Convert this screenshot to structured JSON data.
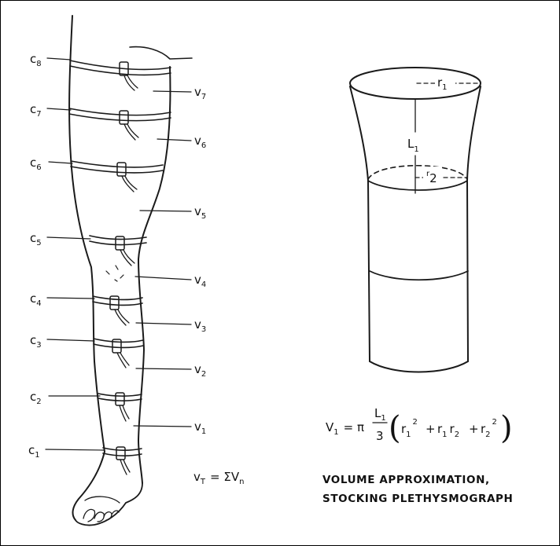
{
  "leg": {
    "circumferences": [
      {
        "letter": "c",
        "sub": "8"
      },
      {
        "letter": "c",
        "sub": "7"
      },
      {
        "letter": "c",
        "sub": "6"
      },
      {
        "letter": "c",
        "sub": "5"
      },
      {
        "letter": "c",
        "sub": "4"
      },
      {
        "letter": "c",
        "sub": "3"
      },
      {
        "letter": "c",
        "sub": "2"
      },
      {
        "letter": "c",
        "sub": "1"
      }
    ],
    "volumes": [
      {
        "letter": "v",
        "sub": "7"
      },
      {
        "letter": "v",
        "sub": "6"
      },
      {
        "letter": "v",
        "sub": "5"
      },
      {
        "letter": "v",
        "sub": "4"
      },
      {
        "letter": "v",
        "sub": "3"
      },
      {
        "letter": "v",
        "sub": "2"
      },
      {
        "letter": "v",
        "sub": "1"
      }
    ],
    "total": {
      "lhs": "v",
      "lhs_sub": "T",
      "rhs": "= ΣV",
      "rhs_sub": "n"
    }
  },
  "frustum": {
    "r1": {
      "letter": "r",
      "sub": "1"
    },
    "r2": {
      "letter": "r",
      "sub": "2"
    },
    "L1": {
      "letter": "L",
      "sub": "1"
    }
  },
  "formula": {
    "lhs": "V",
    "lhs_sub": "1",
    "eq_pi": "= π",
    "frac_num": "L",
    "frac_num_sub": "1",
    "frac_den": "3",
    "t1": "r",
    "t1_sub": "1",
    "t1_sup": "2",
    "plus1": "+",
    "t2a": "r",
    "t2a_sub": "1",
    "t2b": "r",
    "t2b_sub": "2",
    "plus2": "+",
    "t3": "r",
    "t3_sub": "2",
    "t3_sup": "2"
  },
  "caption": {
    "line1": "VOLUME APPROXIMATION,",
    "line2": "STOCKING PLETHYSMOGRAPH"
  }
}
